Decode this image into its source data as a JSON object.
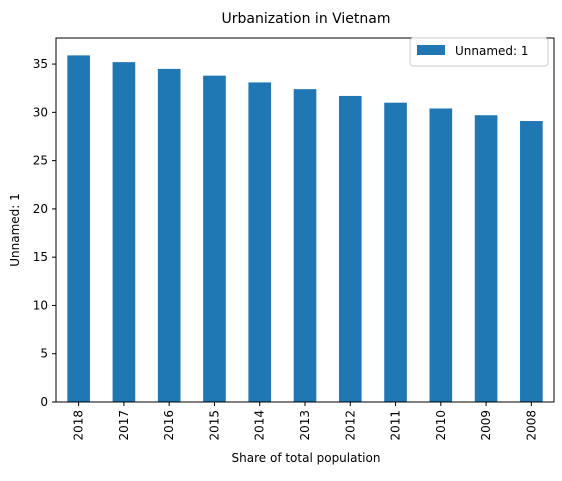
{
  "chart_data": {
    "type": "bar",
    "title": "Urbanization in Vietnam",
    "xlabel": "Share of total population",
    "ylabel": "Unnamed: 1",
    "categories": [
      "2018",
      "2017",
      "2016",
      "2015",
      "2014",
      "2013",
      "2012",
      "2011",
      "2010",
      "2009",
      "2008"
    ],
    "series": [
      {
        "name": "Unnamed: 1",
        "color": "#1f77b4",
        "values": [
          35.9,
          35.2,
          34.5,
          33.8,
          33.1,
          32.4,
          31.7,
          31.0,
          30.4,
          29.7,
          29.1
        ]
      }
    ],
    "ylim": [
      0,
      37.7
    ],
    "yticks": [
      0,
      5,
      10,
      15,
      20,
      25,
      30,
      35
    ],
    "grid": false,
    "legend_position": "top-right"
  }
}
